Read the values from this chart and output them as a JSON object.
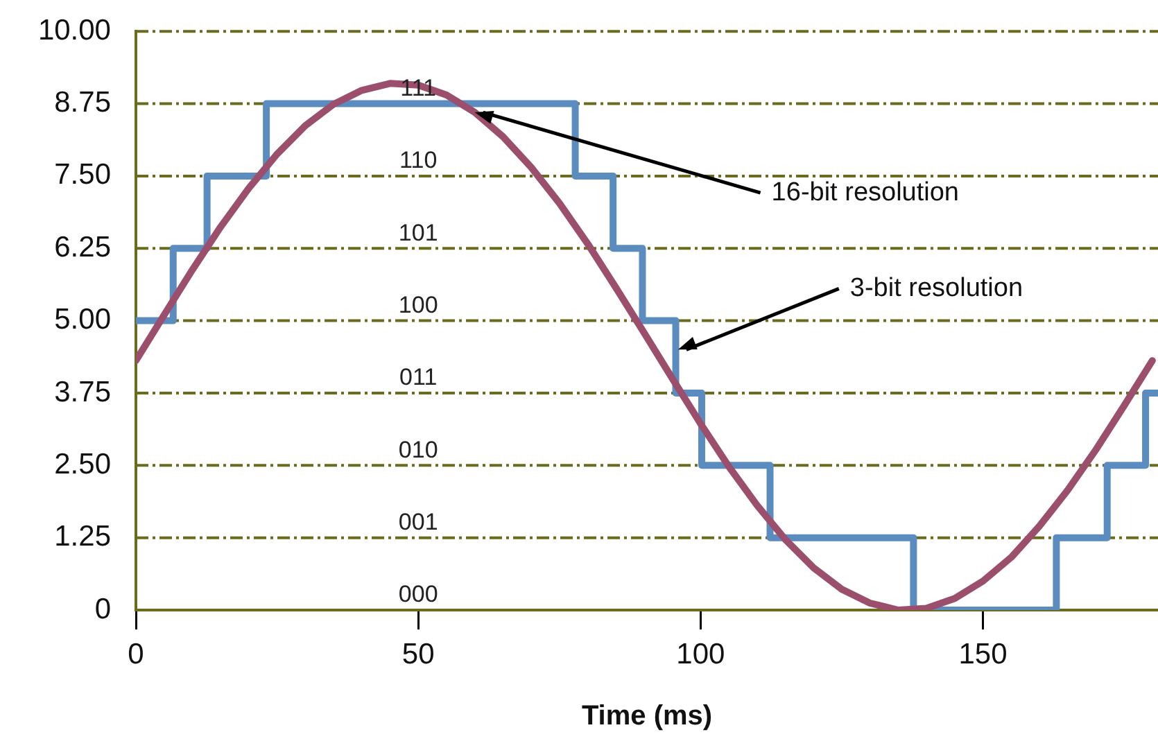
{
  "chart_data": {
    "type": "line",
    "xlabel": "Time (ms)",
    "xlim": [
      0,
      181
    ],
    "xticks": [
      0,
      50,
      100,
      150
    ],
    "ylim": [
      0,
      10
    ],
    "yticks": [
      {
        "value": 0,
        "label": "0"
      },
      1.25,
      {
        "value": 2.5,
        "label": "2.50"
      },
      3.75,
      {
        "value": 5,
        "label": "5.00"
      },
      6.25,
      {
        "value": 7.5,
        "label": "7.50"
      },
      8.75,
      {
        "value": 10,
        "label": "10.00"
      }
    ],
    "grid": "y",
    "legend": false,
    "marker": "none",
    "series": [
      {
        "type": "line",
        "color": "#9b4f6c",
        "x": [
          0,
          5,
          10,
          15,
          20,
          25,
          30,
          35,
          40,
          45,
          50,
          55,
          60,
          65,
          70,
          75,
          80,
          85,
          90,
          95,
          100,
          105,
          110,
          115,
          120,
          125,
          130,
          135,
          140,
          145,
          150,
          155,
          160,
          165,
          170,
          175,
          180
        ],
        "values": [
          4.31,
          5.1,
          5.88,
          6.62,
          7.29,
          7.88,
          8.37,
          8.74,
          8.98,
          9.1,
          9.07,
          8.9,
          8.6,
          8.18,
          7.65,
          7.03,
          6.33,
          5.57,
          4.79,
          4.0,
          3.22,
          2.48,
          1.81,
          1.22,
          0.73,
          0.36,
          0.12,
          0.0,
          0.03,
          0.2,
          0.5,
          0.91,
          1.45,
          2.07,
          2.77,
          3.53,
          4.31
        ]
      },
      {
        "type": "step",
        "color": "#5b8cc0",
        "x": [
          0,
          6.6,
          12.6,
          23.1,
          77.8,
          84.5,
          89.7,
          95.6,
          100.2,
          112.3,
          137.7,
          163,
          172,
          178.8,
          181
        ],
        "values": [
          5,
          6.25,
          7.5,
          8.75,
          7.5,
          6.25,
          5,
          3.75,
          2.5,
          1.25,
          0,
          1.25,
          2.5,
          3.75,
          3.75
        ]
      }
    ],
    "annotations": [
      "000",
      "001",
      "010",
      "011",
      "100",
      "101",
      "110",
      "111",
      {
        "text": "16-bit resolution",
        "x": 60,
        "y": 8.6
      },
      {
        "text": "3-bit resolution",
        "x": 96,
        "y": 4.5
      }
    ]
  }
}
